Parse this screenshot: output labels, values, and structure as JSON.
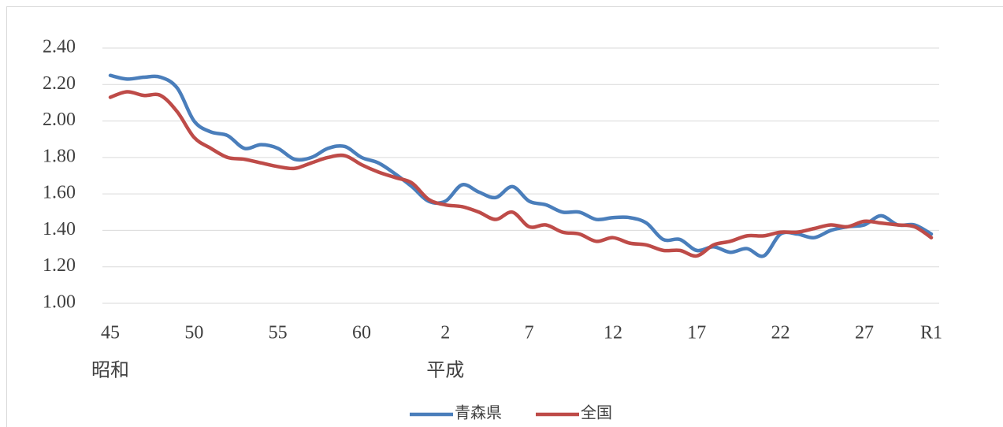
{
  "chart_data": {
    "type": "line",
    "categories": [
      "45",
      null,
      null,
      null,
      null,
      "50",
      null,
      null,
      null,
      null,
      "55",
      null,
      null,
      null,
      null,
      "60",
      null,
      null,
      null,
      null,
      "2",
      null,
      null,
      null,
      null,
      "7",
      null,
      null,
      null,
      null,
      "12",
      null,
      null,
      null,
      null,
      "17",
      null,
      null,
      null,
      null,
      "22",
      null,
      null,
      null,
      null,
      "27",
      null,
      null,
      null,
      "R1"
    ],
    "category_groups": [
      "昭和",
      null,
      null,
      null,
      null,
      null,
      null,
      null,
      null,
      null,
      null,
      null,
      null,
      null,
      null,
      null,
      null,
      null,
      null,
      null,
      "平成",
      null,
      null,
      null,
      null,
      null,
      null,
      null,
      null,
      null,
      null,
      null,
      null,
      null,
      null,
      null,
      null,
      null,
      null,
      null,
      null,
      null,
      null,
      null,
      null,
      null,
      null,
      null,
      null,
      null
    ],
    "series": [
      {
        "name": "青森県",
        "color": "#4a7ebb",
        "values": [
          2.25,
          2.23,
          2.24,
          2.24,
          2.18,
          2.0,
          1.94,
          1.92,
          1.85,
          1.87,
          1.85,
          1.79,
          1.8,
          1.85,
          1.86,
          1.8,
          1.77,
          1.71,
          1.64,
          1.56,
          1.56,
          1.65,
          1.61,
          1.58,
          1.64,
          1.56,
          1.54,
          1.5,
          1.5,
          1.46,
          1.47,
          1.47,
          1.44,
          1.35,
          1.35,
          1.29,
          1.31,
          1.28,
          1.3,
          1.26,
          1.38,
          1.38,
          1.36,
          1.4,
          1.42,
          1.43,
          1.48,
          1.43,
          1.43,
          1.38
        ]
      },
      {
        "name": "全国",
        "color": "#be4b48",
        "values": [
          2.13,
          2.16,
          2.14,
          2.14,
          2.05,
          1.91,
          1.85,
          1.8,
          1.79,
          1.77,
          1.75,
          1.74,
          1.77,
          1.8,
          1.81,
          1.76,
          1.72,
          1.69,
          1.66,
          1.57,
          1.54,
          1.53,
          1.5,
          1.46,
          1.5,
          1.42,
          1.43,
          1.39,
          1.38,
          1.34,
          1.36,
          1.33,
          1.32,
          1.29,
          1.29,
          1.26,
          1.32,
          1.34,
          1.37,
          1.37,
          1.39,
          1.39,
          1.41,
          1.43,
          1.42,
          1.45,
          1.44,
          1.43,
          1.42,
          1.36
        ]
      }
    ],
    "ylim": [
      1.0,
      2.4
    ],
    "yticks": [
      {
        "value": 1.0,
        "label": "1.00"
      },
      {
        "value": 1.2,
        "label": "1.20"
      },
      {
        "value": 1.4,
        "label": "1.40"
      },
      {
        "value": 1.6,
        "label": "1.60"
      },
      {
        "value": 1.8,
        "label": "1.80"
      },
      {
        "value": 2.0,
        "label": "2.00"
      },
      {
        "value": 2.2,
        "label": "2.20"
      },
      {
        "value": 2.4,
        "label": "2.40"
      }
    ],
    "grid": true,
    "legend": "bottom"
  }
}
